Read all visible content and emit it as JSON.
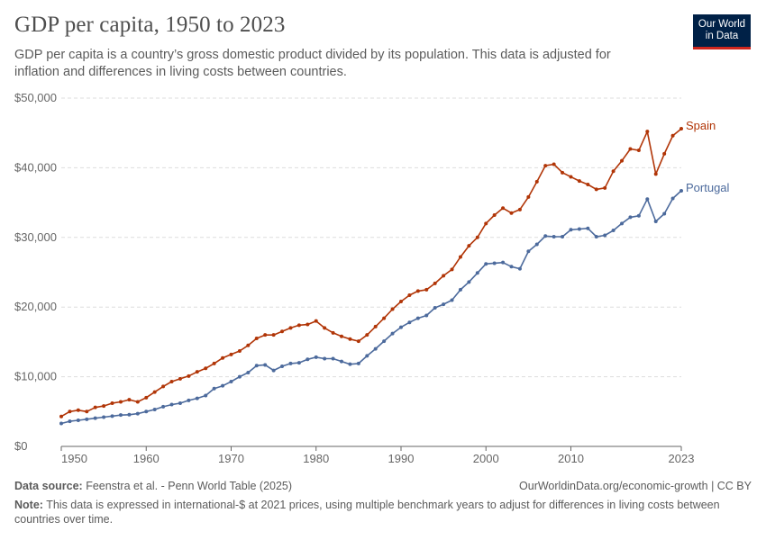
{
  "header": {
    "title": "GDP per capita, 1950 to 2023",
    "subtitle": "GDP per capita is a country’s gross domestic product divided by its population. This data is adjusted for inflation and differences in living costs between countries."
  },
  "logo": {
    "line1": "Our World",
    "line2": "in Data"
  },
  "footer": {
    "source_label": "Data source:",
    "source_text": "Feenstra et al. - Penn World Table (2025)",
    "url_license": "OurWorldinData.org/economic-growth | CC BY",
    "note_label": "Note:",
    "note_text": "This data is expressed in international-$ at 2021 prices, using multiple benchmark years to adjust for differences in living costs between countries over time."
  },
  "colors": {
    "spain": "#b13507",
    "portugal": "#4c6a9c",
    "grid": "#dddddd",
    "axis": "#666666"
  },
  "chart_data": {
    "type": "line",
    "xlim": [
      1950,
      2023
    ],
    "ylim": [
      0,
      50000
    ],
    "x_ticks": [
      1950,
      1960,
      1970,
      1980,
      1990,
      2000,
      2010,
      2023
    ],
    "y_ticks": [
      0,
      10000,
      20000,
      30000,
      40000,
      50000
    ],
    "y_tick_labels": [
      "$0",
      "$10,000",
      "$20,000",
      "$30,000",
      "$40,000",
      "$50,000"
    ],
    "grid": "horizontal",
    "series": [
      {
        "name": "Spain",
        "color": "#b13507",
        "x": [
          1950,
          1951,
          1952,
          1953,
          1954,
          1955,
          1956,
          1957,
          1958,
          1959,
          1960,
          1961,
          1962,
          1963,
          1964,
          1965,
          1966,
          1967,
          1968,
          1969,
          1970,
          1971,
          1972,
          1973,
          1974,
          1975,
          1976,
          1977,
          1978,
          1979,
          1980,
          1981,
          1982,
          1983,
          1984,
          1985,
          1986,
          1987,
          1988,
          1989,
          1990,
          1991,
          1992,
          1993,
          1994,
          1995,
          1996,
          1997,
          1998,
          1999,
          2000,
          2001,
          2002,
          2003,
          2004,
          2005,
          2006,
          2007,
          2008,
          2009,
          2010,
          2011,
          2012,
          2013,
          2014,
          2015,
          2016,
          2017,
          2018,
          2019,
          2020,
          2021,
          2022,
          2023
        ],
        "values": [
          4300,
          5000,
          5200,
          5000,
          5600,
          5800,
          6200,
          6400,
          6700,
          6400,
          7000,
          7800,
          8600,
          9300,
          9700,
          10100,
          10700,
          11200,
          11900,
          12700,
          13200,
          13700,
          14500,
          15500,
          16000,
          16000,
          16500,
          17000,
          17400,
          17500,
          18000,
          17000,
          16300,
          15800,
          15400,
          15100,
          16000,
          17200,
          18400,
          19700,
          20800,
          21700,
          22300,
          22500,
          23400,
          24500,
          25400,
          27200,
          28800,
          30000,
          32000,
          33200,
          34200,
          33500,
          34000,
          35800,
          38000,
          40300,
          40500,
          39300,
          38700,
          38100,
          37600,
          36900,
          37100,
          39500,
          41000,
          42700,
          42500,
          45200,
          39100,
          42000,
          44600,
          45600
        ]
      },
      {
        "name": "Portugal",
        "color": "#4c6a9c",
        "x": [
          1950,
          1951,
          1952,
          1953,
          1954,
          1955,
          1956,
          1957,
          1958,
          1959,
          1960,
          1961,
          1962,
          1963,
          1964,
          1965,
          1966,
          1967,
          1968,
          1969,
          1970,
          1971,
          1972,
          1973,
          1974,
          1975,
          1976,
          1977,
          1978,
          1979,
          1980,
          1981,
          1982,
          1983,
          1984,
          1985,
          1986,
          1987,
          1988,
          1989,
          1990,
          1991,
          1992,
          1993,
          1994,
          1995,
          1996,
          1997,
          1998,
          1999,
          2000,
          2001,
          2002,
          2003,
          2004,
          2005,
          2006,
          2007,
          2008,
          2009,
          2010,
          2011,
          2012,
          2013,
          2014,
          2015,
          2016,
          2017,
          2018,
          2019,
          2020,
          2021,
          2022,
          2023
        ],
        "values": [
          3300,
          3600,
          3750,
          3900,
          4050,
          4200,
          4350,
          4500,
          4550,
          4700,
          5000,
          5300,
          5700,
          6000,
          6200,
          6600,
          6900,
          7300,
          8300,
          8700,
          9300,
          10000,
          10600,
          11600,
          11700,
          10900,
          11500,
          11900,
          12000,
          12500,
          12800,
          12600,
          12600,
          12200,
          11800,
          11900,
          13000,
          14000,
          15100,
          16200,
          17100,
          17800,
          18400,
          18800,
          19900,
          20400,
          21000,
          22500,
          23600,
          24900,
          26200,
          26300,
          26400,
          25800,
          25500,
          28000,
          29000,
          30200,
          30100,
          30100,
          31100,
          31200,
          31300,
          30100,
          30300,
          31000,
          32000,
          32900,
          33100,
          35500,
          32300,
          33400,
          35600,
          36700
        ]
      }
    ]
  }
}
